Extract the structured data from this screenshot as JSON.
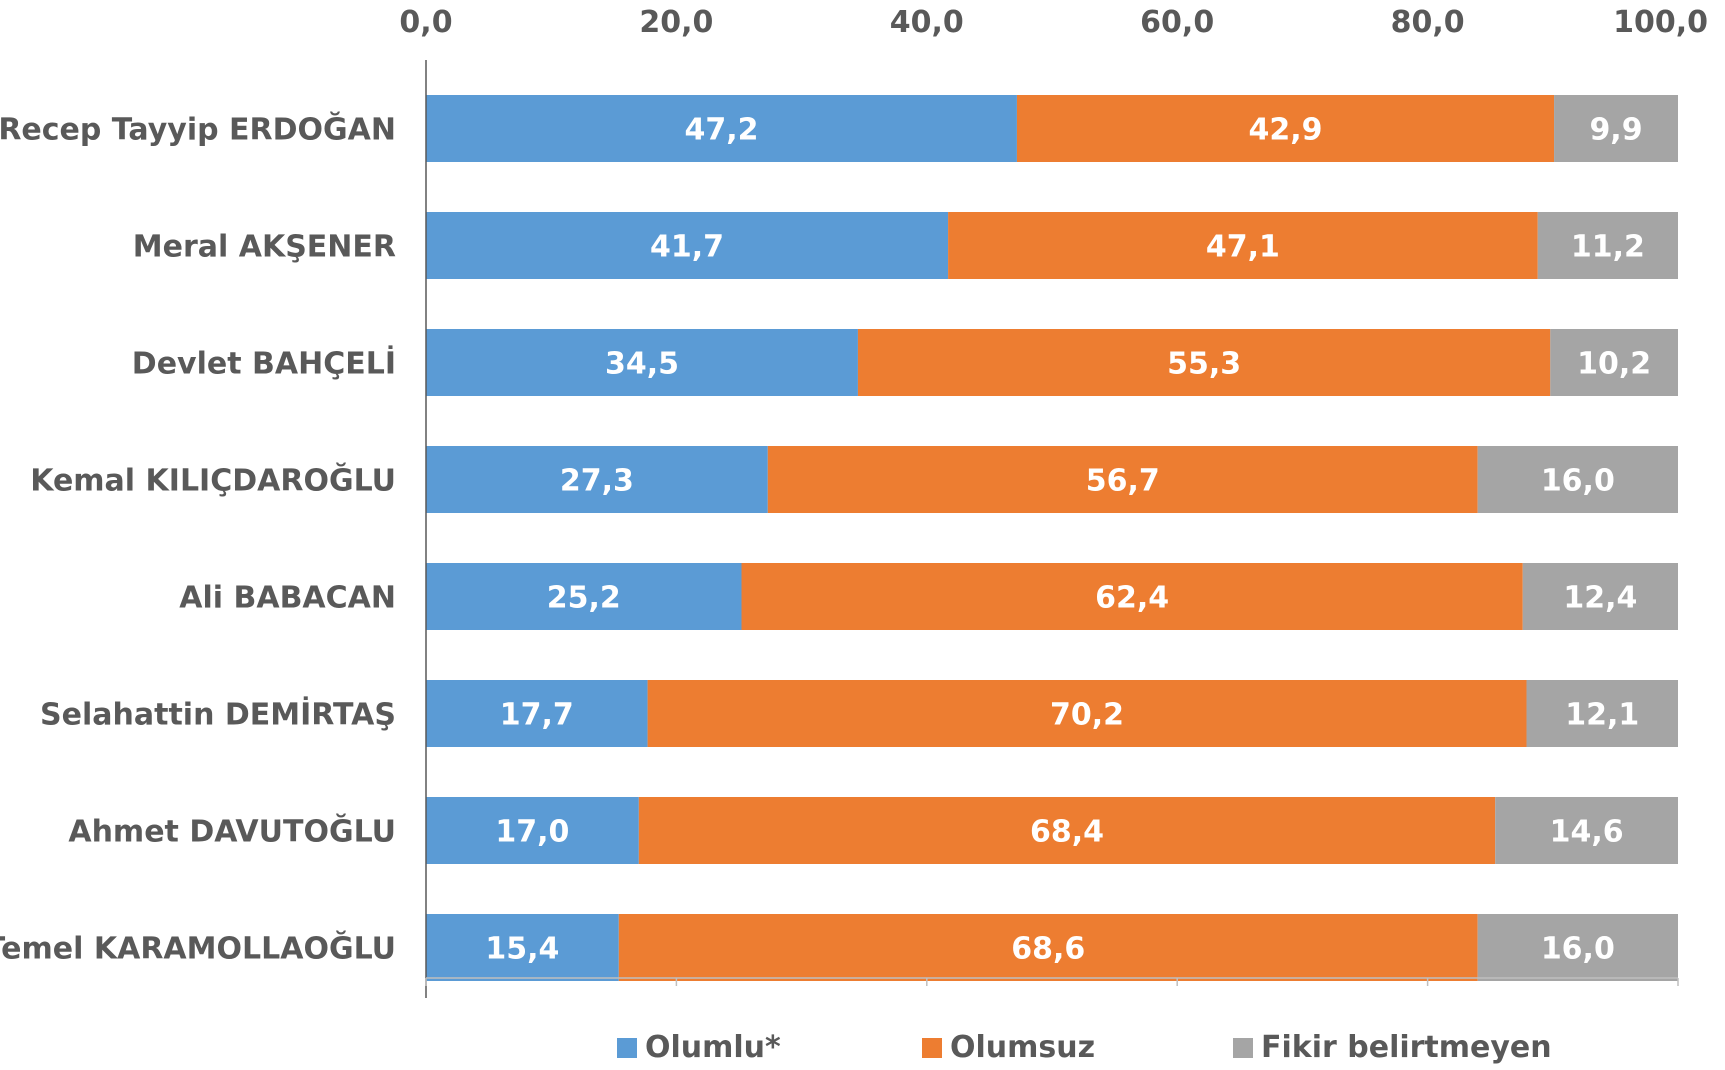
{
  "chart_data": {
    "type": "bar",
    "orientation": "horizontal",
    "stacked": true,
    "categories": [
      "Recep Tayyip ERDOĞAN",
      "Meral AKŞENER",
      "Devlet BAHÇELİ",
      "Kemal KILIÇDAROĞLU",
      "Ali BABACAN",
      "Selahattin DEMİRTAŞ",
      "Ahmet DAVUTOĞLU",
      "Temel KARAMOLLAOĞLU"
    ],
    "series": [
      {
        "name": "Olumlu*",
        "color": "#5B9BD5",
        "values": [
          47.2,
          41.7,
          34.5,
          27.3,
          25.2,
          17.7,
          17.0,
          15.4
        ],
        "labels": [
          "47,2",
          "41,7",
          "34,5",
          "27,3",
          "25,2",
          "17,7",
          "17,0",
          "15,4"
        ]
      },
      {
        "name": "Olumsuz",
        "color": "#ED7D31",
        "values": [
          42.9,
          47.1,
          55.3,
          56.7,
          62.4,
          70.2,
          68.4,
          68.6
        ],
        "labels": [
          "42,9",
          "47,1",
          "55,3",
          "56,7",
          "62,4",
          "70,2",
          "68,4",
          "68,6"
        ]
      },
      {
        "name": "Fikir belirtmeyen",
        "color": "#A5A5A5",
        "values": [
          9.9,
          11.2,
          10.2,
          16.0,
          12.4,
          12.1,
          14.6,
          16.0
        ],
        "labels": [
          "9,9",
          "11,2",
          "10,2",
          "16,0",
          "12,4",
          "12,1",
          "14,6",
          "16,0"
        ]
      }
    ],
    "xlim": [
      0,
      100
    ],
    "x_ticks": [
      0,
      20,
      40,
      60,
      80,
      100
    ],
    "x_tick_labels": [
      "0,0",
      "20,0",
      "40,0",
      "60,0",
      "80,0",
      "100,0"
    ],
    "x_axis_position": "top",
    "grid": false,
    "legend_position": "bottom",
    "title": "",
    "xlabel": "",
    "ylabel": ""
  },
  "legend": {
    "items": [
      {
        "label": "Olumlu*",
        "color": "#5B9BD5"
      },
      {
        "label": "Olumsuz",
        "color": "#ED7D31"
      },
      {
        "label": "Fikir belirtmeyen",
        "color": "#A5A5A5"
      }
    ]
  }
}
